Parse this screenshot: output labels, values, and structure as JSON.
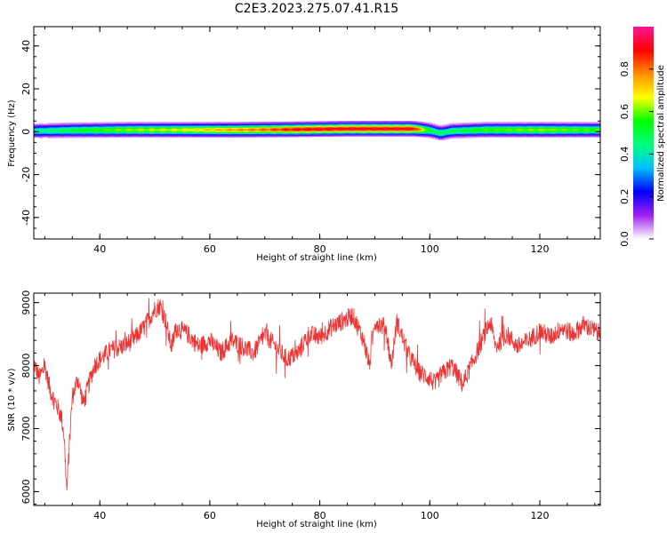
{
  "title": "C2E3.2023.275.07.41.R15",
  "chart_data": [
    {
      "type": "heatmap",
      "xlabel": "Height of straight line (km)",
      "ylabel": "Frequency (Hz)",
      "xlim": [
        28,
        131
      ],
      "ylim": [
        -50,
        49
      ],
      "xticks": [
        40,
        60,
        80,
        100,
        120
      ],
      "yticks": [
        -40,
        -20,
        0,
        20,
        40
      ],
      "band": {
        "center_hz": [
          [
            28,
            0.5
          ],
          [
            35,
            0.8
          ],
          [
            45,
            1.0
          ],
          [
            55,
            1.0
          ],
          [
            65,
            1.0
          ],
          [
            75,
            1.2
          ],
          [
            85,
            1.5
          ],
          [
            92,
            1.5
          ],
          [
            97,
            1.5
          ],
          [
            100,
            0.8
          ],
          [
            102,
            -0.5
          ],
          [
            104,
            0.5
          ],
          [
            110,
            1.0
          ],
          [
            120,
            1.0
          ],
          [
            131,
            1.0
          ]
        ],
        "amplitude": [
          [
            28,
            0.45
          ],
          [
            35,
            0.55
          ],
          [
            45,
            0.65
          ],
          [
            55,
            0.7
          ],
          [
            62,
            0.78
          ],
          [
            70,
            0.85
          ],
          [
            76,
            0.95
          ],
          [
            85,
            0.97
          ],
          [
            92,
            0.97
          ],
          [
            97,
            0.96
          ],
          [
            100,
            0.55
          ],
          [
            103,
            0.5
          ],
          [
            110,
            0.6
          ],
          [
            120,
            0.65
          ],
          [
            131,
            0.6
          ]
        ]
      },
      "colorbar": {
        "label": "Normalized spectral amplitude",
        "range": [
          0,
          1
        ],
        "ticks": [
          "0.0",
          "0.2",
          "0.4",
          "0.6",
          "0.8"
        ],
        "colors": [
          "#ffffff",
          "#a020f0",
          "#0000ff",
          "#00bfff",
          "#00ff7f",
          "#00ff00",
          "#ffff00",
          "#ff8c00",
          "#ff0000",
          "#ff1493"
        ]
      }
    },
    {
      "type": "line",
      "xlabel": "Height of straight line (km)",
      "ylabel": "SNR (10 * v/v)",
      "xlim": [
        28,
        131
      ],
      "ylim": [
        5780,
        9150
      ],
      "xticks": [
        40,
        60,
        80,
        100,
        120
      ],
      "yticks": [
        6000,
        7000,
        8000,
        9000
      ],
      "color": "#ee3333",
      "x": [
        28,
        29,
        30,
        31,
        32,
        33,
        33.5,
        34,
        34.5,
        35,
        36,
        37,
        38,
        39,
        40,
        42,
        44,
        46,
        48,
        50,
        51,
        52,
        53,
        54,
        56,
        58,
        60,
        62,
        64,
        66,
        68,
        70,
        72,
        74,
        76,
        78,
        80,
        82,
        84,
        86,
        88,
        89,
        90,
        92,
        93,
        94,
        96,
        98,
        100,
        101,
        102,
        104,
        106,
        108,
        110,
        111,
        112,
        114,
        116,
        118,
        120,
        122,
        124,
        126,
        128,
        130,
        131
      ],
      "y": [
        8050,
        7800,
        8000,
        7600,
        7400,
        7200,
        6900,
        6000,
        6800,
        7500,
        7800,
        7400,
        7700,
        8000,
        8100,
        8250,
        8300,
        8400,
        8600,
        8900,
        8950,
        8700,
        8300,
        8600,
        8500,
        8300,
        8400,
        8200,
        8400,
        8300,
        8200,
        8500,
        8300,
        8100,
        8200,
        8500,
        8450,
        8600,
        8700,
        8800,
        8400,
        8000,
        8700,
        8600,
        8000,
        8700,
        8200,
        7900,
        7800,
        7700,
        7850,
        8000,
        7700,
        8100,
        8500,
        8700,
        8300,
        8500,
        8300,
        8400,
        8550,
        8450,
        8600,
        8500,
        8650,
        8550,
        8500
      ],
      "noise_amplitude": 150
    }
  ]
}
